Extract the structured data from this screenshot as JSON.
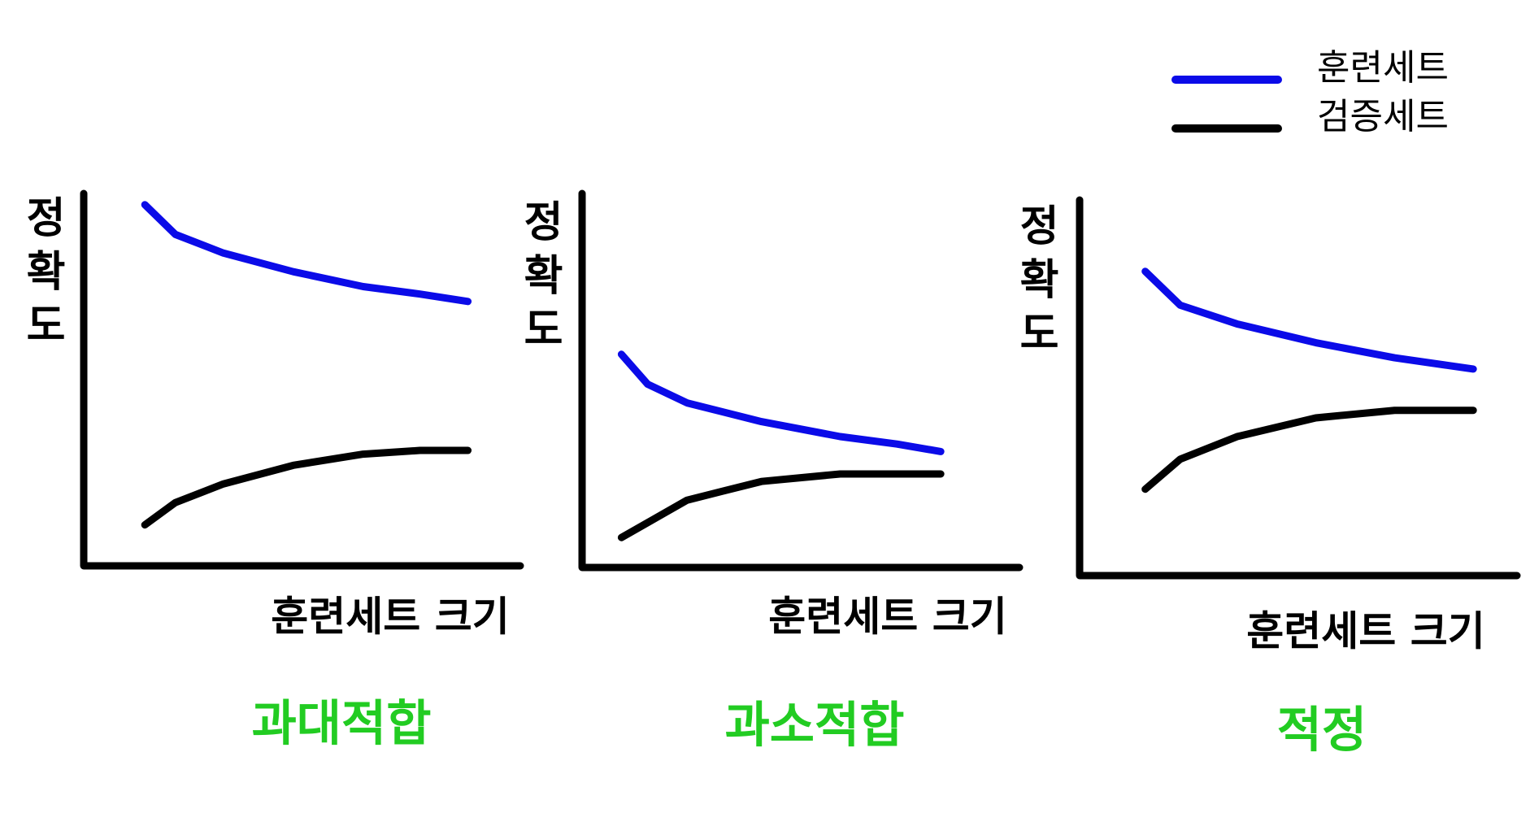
{
  "chart_data": [
    {
      "type": "line",
      "caption": "과대적합",
      "caption_color": "#22cc22",
      "y_label": "정확도",
      "x_label": "훈련세트 크기",
      "xlim": [
        0,
        100
      ],
      "ylim": [
        0,
        100
      ],
      "x": [
        14,
        21,
        32,
        48,
        64,
        77,
        88
      ],
      "series": [
        {
          "name": "훈련세트",
          "color": "#0b0be8",
          "values": [
            97,
            89,
            84,
            79,
            75,
            73,
            71
          ]
        },
        {
          "name": "검증세트",
          "color": "#000000",
          "values": [
            11,
            17,
            22,
            27,
            30,
            31,
            31
          ]
        }
      ]
    },
    {
      "type": "line",
      "caption": "과소적합",
      "caption_color": "#22cc22",
      "y_label": "정확도",
      "x_label": "훈련세트 크기",
      "xlim": [
        0,
        100
      ],
      "ylim": [
        0,
        100
      ],
      "x": [
        9,
        15,
        24,
        41,
        59,
        72,
        82
      ],
      "series": [
        {
          "name": "훈련세트",
          "color": "#0b0be8",
          "values": [
            57,
            49,
            44,
            39,
            35,
            33,
            31
          ]
        },
        {
          "name": "검증세트",
          "color": "#000000",
          "values": [
            8,
            12,
            18,
            23,
            25,
            25,
            25
          ]
        }
      ]
    },
    {
      "type": "line",
      "caption": "적정",
      "caption_color": "#22cc22",
      "y_label": "정확도",
      "x_label": "훈련세트 크기",
      "xlim": [
        0,
        100
      ],
      "ylim": [
        0,
        100
      ],
      "x": [
        15,
        23,
        36,
        54,
        72,
        84,
        90
      ],
      "series": [
        {
          "name": "훈련세트",
          "color": "#0b0be8",
          "values": [
            81,
            72,
            67,
            62,
            58,
            56,
            55
          ]
        },
        {
          "name": "검증세트",
          "color": "#000000",
          "values": [
            23,
            31,
            37,
            42,
            44,
            44,
            44
          ]
        }
      ]
    }
  ]
}
